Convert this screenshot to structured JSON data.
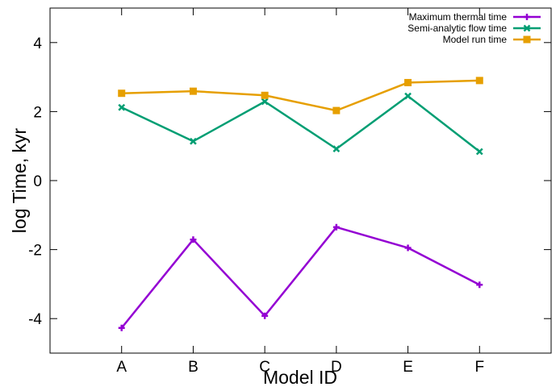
{
  "chart_data": {
    "type": "line",
    "xlabel": "Model ID",
    "ylabel": "log Time, kyr",
    "categories": [
      "A",
      "B",
      "C",
      "D",
      "E",
      "F"
    ],
    "ylim": [
      -5,
      5
    ],
    "yticks": [
      -4,
      -2,
      0,
      2,
      4
    ],
    "grid": false,
    "legend_position": "top-right",
    "series": [
      {
        "name": "Maximum thermal time",
        "color": "#9400d3",
        "marker": "plus",
        "values": [
          -4.27,
          -1.71,
          -3.92,
          -1.35,
          -1.95,
          -3.02
        ]
      },
      {
        "name": "Semi-analytic flow time",
        "color": "#009e73",
        "marker": "cross",
        "values": [
          2.12,
          1.14,
          2.29,
          0.92,
          2.45,
          0.84
        ]
      },
      {
        "name": "Model run time",
        "color": "#e69f00",
        "marker": "square",
        "values": [
          2.53,
          2.59,
          2.47,
          2.03,
          2.84,
          2.9
        ]
      }
    ]
  }
}
